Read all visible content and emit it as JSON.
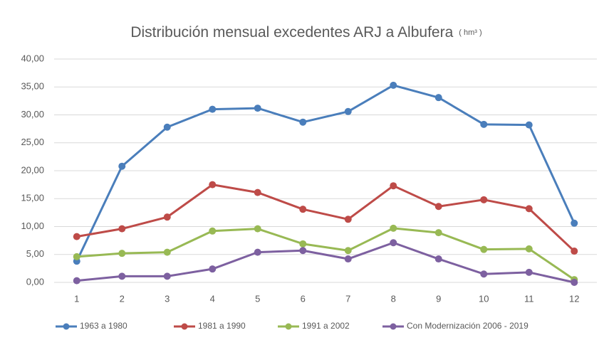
{
  "chart_data": {
    "type": "line",
    "title": "Distribución mensual excedentes ARJ a Albufera",
    "units": "( hm³ )",
    "categories": [
      "1",
      "2",
      "3",
      "4",
      "5",
      "6",
      "7",
      "8",
      "9",
      "10",
      "11",
      "12"
    ],
    "series": [
      {
        "name": "1963 a 1980",
        "color": "#4a7ebb",
        "values": [
          3.8,
          20.8,
          27.8,
          31.0,
          31.2,
          28.7,
          30.6,
          35.3,
          33.1,
          28.3,
          28.2,
          10.6
        ]
      },
      {
        "name": "1981 a 1990",
        "color": "#be4b48",
        "values": [
          8.2,
          9.6,
          11.7,
          17.5,
          16.1,
          13.1,
          11.3,
          17.3,
          13.6,
          14.8,
          13.2,
          5.6
        ]
      },
      {
        "name": "1991 a 2002",
        "color": "#98b954",
        "values": [
          4.6,
          5.2,
          5.4,
          9.2,
          9.6,
          6.9,
          5.7,
          9.7,
          8.9,
          5.9,
          6.0,
          0.5
        ]
      },
      {
        "name": "Con Modernización 2006 - 2019",
        "color": "#7d60a0",
        "values": [
          0.3,
          1.1,
          1.1,
          2.4,
          5.4,
          5.7,
          4.2,
          7.1,
          4.2,
          1.5,
          1.8,
          0.0
        ]
      }
    ],
    "ylim": [
      0,
      40
    ],
    "yticks": [
      {
        "value": 0,
        "label": "0,00"
      },
      {
        "value": 5,
        "label": "5,00"
      },
      {
        "value": 10,
        "label": "10,00"
      },
      {
        "value": 15,
        "label": "15,00"
      },
      {
        "value": 20,
        "label": "20,00"
      },
      {
        "value": 25,
        "label": "25,00"
      },
      {
        "value": 30,
        "label": "30,00"
      },
      {
        "value": 35,
        "label": "35,00"
      },
      {
        "value": 40,
        "label": "40,00"
      }
    ],
    "grid": true,
    "legend": "bottom"
  }
}
